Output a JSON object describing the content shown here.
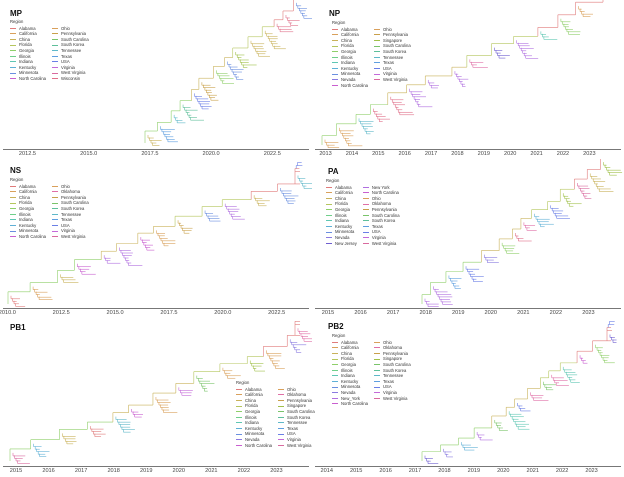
{
  "figure": {
    "panels": [
      {
        "id": "mp",
        "title": "MP",
        "legend_title": "Region",
        "legend_columns": [
          [
            "Alabama",
            "California",
            "China",
            "Florida",
            "Georgia",
            "Illinois",
            "Indiana",
            "Kentucky",
            "Minnesota",
            "North Carolina"
          ],
          [
            "Ohio",
            "Pennsylvania",
            "South Carolina",
            "South Korea",
            "Tennessee",
            "Texas",
            "USA",
            "Virginia",
            "West Virginia",
            "Wisconsin"
          ]
        ],
        "x_ticks": [
          "2012.5",
          "2015.0",
          "2017.5",
          "2020.0",
          "2022.5"
        ],
        "x_range": [
          2011.5,
          2024.0
        ]
      },
      {
        "id": "np",
        "title": "NP",
        "legend_title": "Region",
        "legend_columns": [
          [
            "Alabama",
            "California",
            "China",
            "Florida",
            "Georgia",
            "Illinois",
            "Indiana",
            "Kentucky",
            "Minnesota",
            "Nevada",
            "North Carolina"
          ],
          [
            "Ohio",
            "Pennsylvania",
            "Singapore",
            "South Carolina",
            "South Korea",
            "Tennessee",
            "Texas",
            "USA",
            "Virginia",
            "West Virginia"
          ]
        ],
        "x_ticks": [
          "2013",
          "2014",
          "2015",
          "2016",
          "2017",
          "2018",
          "2019",
          "2020",
          "2021",
          "2022",
          "2023"
        ],
        "x_range": [
          2012.6,
          2024.2
        ]
      },
      {
        "id": "ns",
        "title": "NS",
        "legend_title": "Region",
        "legend_columns": [
          [
            "Alabama",
            "California",
            "China",
            "Florida",
            "Georgia",
            "Illinois",
            "Indiana",
            "Kentucky",
            "Minnesota",
            "North Carolina"
          ],
          [
            "Ohio",
            "Oklahoma",
            "Pennsylvania",
            "South Carolina",
            "South Korea",
            "Tennessee",
            "Texas",
            "USA",
            "Virginia",
            "West Virginia"
          ]
        ],
        "x_ticks": [
          "2010.0",
          "2012.5",
          "2015.0",
          "2017.5",
          "2020.0",
          "2022.5"
        ],
        "x_range": [
          2009.8,
          2024.0
        ]
      },
      {
        "id": "pa",
        "title": "PA",
        "legend_title": "Region",
        "legend_columns": [
          [
            "Alabama",
            "California",
            "China",
            "Florida",
            "Georgia",
            "Illinois",
            "Indiana",
            "Kentucky",
            "Minnesota",
            "Nevada",
            "New Jersey"
          ],
          [
            "New York",
            "North Carolina",
            "Ohio",
            "Oklahoma",
            "Pennsylvania",
            "South Carolina",
            "South Korea",
            "Texas",
            "USA",
            "Virginia",
            "West Virginia"
          ]
        ],
        "x_ticks": [
          "2015",
          "2016",
          "2017",
          "2018",
          "2019",
          "2020",
          "2021",
          "2022",
          "2023"
        ],
        "x_range": [
          2014.6,
          2024.0
        ]
      },
      {
        "id": "pb1",
        "title": "PB1",
        "legend_title": "Region",
        "legend_columns": [
          [
            "Alabama",
            "California",
            "China",
            "Florida",
            "Georgia",
            "Illinois",
            "Indiana",
            "Kentucky",
            "Minnesota",
            "Nevada",
            "North Carolina"
          ],
          [
            "Ohio",
            "Oklahoma",
            "Pennsylvania",
            "Singapore",
            "South Carolina",
            "South Korea",
            "Tennessee",
            "Texas",
            "USA",
            "Virginia",
            "West Virginia"
          ]
        ],
        "x_ticks": [
          "2015",
          "2016",
          "2017",
          "2018",
          "2019",
          "2020",
          "2021",
          "2022",
          "2023"
        ],
        "x_range": [
          2014.6,
          2024.0
        ]
      },
      {
        "id": "pb2",
        "title": "PB2",
        "legend_title": "Region",
        "legend_columns": [
          [
            "Alabama",
            "California",
            "China",
            "Florida",
            "Georgia",
            "Illinois",
            "Indiana",
            "Kentucky",
            "Minnesota",
            "Nevada",
            "New_York",
            "North Carolina"
          ],
          [
            "Ohio",
            "Oklahoma",
            "Pennsylvania",
            "Singapore",
            "South Carolina",
            "South Korea",
            "Tennessee",
            "Texas",
            "USA",
            "Virginia",
            "West Virginia"
          ]
        ],
        "x_ticks": [
          "2014",
          "2015",
          "2016",
          "2017",
          "2018",
          "2019",
          "2020",
          "2021",
          "2022",
          "2023"
        ],
        "x_range": [
          2013.6,
          2024.0
        ]
      }
    ],
    "region_colors": {
      "Alabama": "#e07b7b",
      "California": "#d9a05b",
      "China": "#c9b25a",
      "Florida": "#b5c65e",
      "Georgia": "#8fcf6a",
      "Illinois": "#6fcf8a",
      "Indiana": "#5fc7b3",
      "Kentucky": "#5fb0d6",
      "Minnesota": "#6a8fe0",
      "Nevada": "#8a7be0",
      "New Jersey": "#6f5fd0",
      "New York": "#b06fe0",
      "New_York": "#b06fe0",
      "North Carolina": "#c95fd0",
      "Ohio": "#d9a05b",
      "Oklahoma": "#e06fa6",
      "Pennsylvania": "#c9a04a",
      "Singapore": "#a0c04a",
      "South Carolina": "#7ac46a",
      "South Korea": "#5fbf9a",
      "Tennessee": "#5fb8c9",
      "Texas": "#5f9fe0",
      "USA": "#6a7fe6",
      "Virginia": "#c46ad9",
      "West Virginia": "#d96a9f",
      "Wisconsin": "#e0708a"
    }
  }
}
